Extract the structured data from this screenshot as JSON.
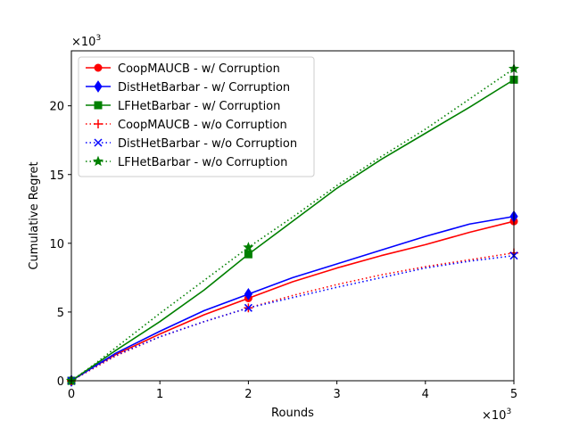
{
  "chart_data": {
    "type": "line",
    "xlabel": "Rounds",
    "ylabel": "Cumulative Regret",
    "x_multiplier_label": "×10",
    "x_multiplier_exp": "3",
    "y_multiplier_label": "×10",
    "y_multiplier_exp": "3",
    "xlim": [
      0,
      5000
    ],
    "ylim": [
      0,
      24000
    ],
    "xticks": [
      0,
      1000,
      2000,
      3000,
      4000,
      5000
    ],
    "xtick_labels": [
      "0",
      "1",
      "2",
      "3",
      "4",
      "5"
    ],
    "yticks": [
      0,
      5000,
      10000,
      15000,
      20000
    ],
    "ytick_labels": [
      "0",
      "5",
      "10",
      "15",
      "20"
    ],
    "grid": false,
    "legend_position": "top-left",
    "series": [
      {
        "name": "CoopMAUCB - w/ Corruption",
        "color": "#ff0000",
        "dash": "solid",
        "marker": "circle",
        "x": [
          0,
          250,
          500,
          1000,
          1500,
          2000,
          2500,
          3000,
          3500,
          4000,
          4500,
          5000
        ],
        "y": [
          0,
          1000,
          1900,
          3400,
          4800,
          6000,
          7200,
          8200,
          9100,
          9900,
          10800,
          11600
        ]
      },
      {
        "name": "DistHetBarbar - w/ Corruption",
        "color": "#0000ff",
        "dash": "solid",
        "marker": "diamond",
        "x": [
          0,
          250,
          500,
          1000,
          1500,
          2000,
          2500,
          3000,
          3500,
          4000,
          4500,
          5000
        ],
        "y": [
          0,
          1000,
          2000,
          3600,
          5100,
          6300,
          7500,
          8500,
          9500,
          10500,
          11400,
          11950
        ]
      },
      {
        "name": "LFHetBarbar - w/ Corruption",
        "color": "#008000",
        "dash": "solid",
        "marker": "square",
        "x": [
          0,
          250,
          500,
          1000,
          1500,
          2000,
          2500,
          3000,
          3500,
          4000,
          4500,
          5000
        ],
        "y": [
          0,
          1100,
          2200,
          4300,
          6600,
          9200,
          11600,
          14000,
          16100,
          18000,
          19900,
          21900
        ]
      },
      {
        "name": "CoopMAUCB - w/o Corruption",
        "color": "#ff0000",
        "dash": "dotted",
        "marker": "plus",
        "x": [
          0,
          250,
          500,
          1000,
          1500,
          2000,
          2500,
          3000,
          3500,
          4000,
          4500,
          5000
        ],
        "y": [
          0,
          900,
          1800,
          3200,
          4300,
          5300,
          6200,
          7000,
          7700,
          8300,
          8800,
          9300
        ]
      },
      {
        "name": "DistHetBarbar - w/o Corruption",
        "color": "#0000ff",
        "dash": "dotted",
        "marker": "x",
        "x": [
          0,
          250,
          500,
          1000,
          1500,
          2000,
          2500,
          3000,
          3500,
          4000,
          4500,
          5000
        ],
        "y": [
          0,
          950,
          1850,
          3200,
          4300,
          5300,
          6050,
          6800,
          7500,
          8200,
          8700,
          9100
        ]
      },
      {
        "name": "LFHetBarbar - w/o Corruption",
        "color": "#008000",
        "dash": "dotted",
        "marker": "star",
        "x": [
          0,
          250,
          500,
          1000,
          1500,
          2000,
          2500,
          3000,
          3500,
          4000,
          4500,
          5000
        ],
        "y": [
          0,
          1150,
          2400,
          4900,
          7300,
          9700,
          11900,
          14200,
          16300,
          18300,
          20500,
          22700
        ]
      }
    ]
  }
}
